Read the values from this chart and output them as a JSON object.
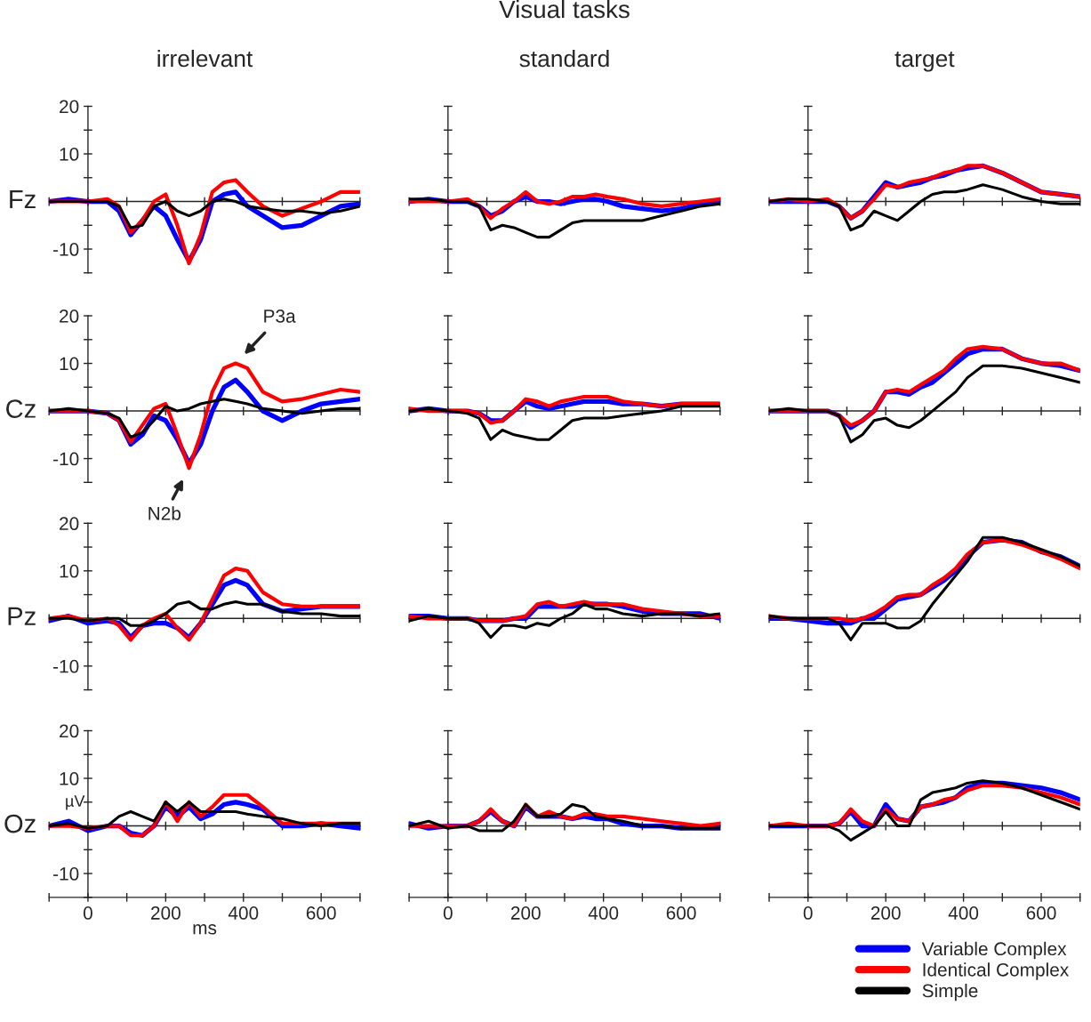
{
  "chart_data": [
    {
      "type": "line",
      "subtitle": "irrelevant",
      "ylabel": "Fz",
      "tick_labels": "y",
      "x": [
        -100,
        -50,
        0,
        50,
        80,
        110,
        140,
        170,
        200,
        230,
        260,
        290,
        320,
        350,
        380,
        410,
        450,
        500,
        550,
        600,
        650,
        700
      ],
      "xlim": [
        -100,
        700
      ],
      "ylim": [
        -15,
        20
      ],
      "xticks": [
        {
          "value": -100,
          "label": null
        },
        0,
        {
          "value": 100,
          "label": null
        },
        200,
        {
          "value": 300,
          "label": null
        },
        400,
        {
          "value": 500,
          "label": null
        },
        600,
        {
          "value": 700,
          "label": null
        }
      ],
      "yticks": [
        {
          "value": -15,
          "label": null
        },
        -10,
        {
          "value": -5,
          "label": null
        },
        {
          "value": 0,
          "label": null
        },
        {
          "value": 5,
          "label": null
        },
        10,
        {
          "value": 15,
          "label": null
        },
        20
      ],
      "series": [
        {
          "color": "#0000ff",
          "values": [
            0,
            0.5,
            0,
            0,
            -2,
            -7,
            -4,
            -1,
            -3,
            -8,
            -12.5,
            -8,
            0,
            1.5,
            2,
            -1,
            -3,
            -5.5,
            -5,
            -3,
            -1,
            -0.5
          ]
        },
        {
          "color": "#ff0000",
          "values": [
            0,
            0,
            0,
            0.5,
            -1,
            -6.5,
            -4,
            0,
            1.5,
            -5,
            -13,
            -7,
            2,
            4,
            4.5,
            2,
            -1,
            -3,
            -1.5,
            0,
            2,
            2
          ]
        },
        {
          "color": "#000000",
          "values": [
            0,
            0,
            0,
            0,
            -1,
            -5.5,
            -5,
            -1,
            0,
            -2,
            -3,
            -2,
            0,
            0.5,
            0,
            -1,
            -1.5,
            -2,
            -2,
            -2.5,
            -2,
            -1
          ]
        }
      ]
    },
    {
      "type": "line",
      "title": "Visual tasks",
      "subtitle": "standard",
      "tick_labels": false,
      "x": [
        -100,
        -50,
        0,
        50,
        80,
        110,
        140,
        170,
        200,
        230,
        260,
        290,
        320,
        350,
        380,
        410,
        450,
        500,
        550,
        600,
        650,
        700
      ],
      "xlim": [
        -100,
        700
      ],
      "ylim": [
        -15,
        20
      ],
      "xticks": [
        {
          "value": -100,
          "label": null
        },
        0,
        {
          "value": 100,
          "label": null
        },
        200,
        {
          "value": 300,
          "label": null
        },
        400,
        {
          "value": 500,
          "label": null
        },
        600,
        {
          "value": 700,
          "label": null
        }
      ],
      "yticks": [
        {
          "value": -15,
          "label": null
        },
        -10,
        {
          "value": -5,
          "label": null
        },
        {
          "value": 0,
          "label": null
        },
        {
          "value": 5,
          "label": null
        },
        10,
        {
          "value": 15,
          "label": null
        },
        20
      ],
      "series": [
        {
          "color": "#0000ff",
          "values": [
            0,
            0.5,
            0,
            0,
            -1,
            -3,
            -2,
            0,
            1,
            0,
            0,
            -0.5,
            0,
            0.5,
            0.5,
            0,
            -1,
            -1.5,
            -2,
            -1.5,
            -0.5,
            0
          ]
        },
        {
          "color": "#ff0000",
          "values": [
            0,
            0,
            0,
            0.5,
            -1,
            -3.5,
            -1.5,
            0,
            2,
            0,
            -0.5,
            0,
            1,
            1,
            1.5,
            1,
            0.5,
            -0.5,
            -1,
            -0.5,
            0,
            0.5
          ]
        },
        {
          "color": "#000000",
          "values": [
            0.5,
            0.5,
            0,
            0,
            -1,
            -6,
            -5,
            -5.5,
            -6.5,
            -7.5,
            -7.5,
            -6,
            -4.5,
            -4,
            -4,
            -4,
            -4,
            -4,
            -3,
            -2,
            -1,
            -0.5
          ]
        }
      ]
    },
    {
      "type": "line",
      "subtitle": "target",
      "tick_labels": false,
      "x": [
        -100,
        -50,
        0,
        50,
        80,
        110,
        140,
        170,
        200,
        230,
        260,
        290,
        320,
        350,
        380,
        410,
        450,
        500,
        550,
        600,
        650,
        700
      ],
      "xlim": [
        -100,
        700
      ],
      "ylim": [
        -15,
        20
      ],
      "xticks": [
        {
          "value": -100,
          "label": null
        },
        0,
        {
          "value": 100,
          "label": null
        },
        200,
        {
          "value": 300,
          "label": null
        },
        400,
        {
          "value": 500,
          "label": null
        },
        600,
        {
          "value": 700,
          "label": null
        }
      ],
      "yticks": [
        {
          "value": -15,
          "label": null
        },
        -10,
        {
          "value": -5,
          "label": null
        },
        {
          "value": 0,
          "label": null
        },
        {
          "value": 5,
          "label": null
        },
        10,
        {
          "value": 15,
          "label": null
        },
        20
      ],
      "series": [
        {
          "color": "#0000ff",
          "values": [
            0,
            0,
            0,
            0,
            -1,
            -3.5,
            -2,
            1,
            4,
            3,
            3.5,
            4,
            5,
            5.5,
            6.5,
            7,
            7.5,
            6,
            4,
            2,
            1.5,
            1
          ]
        },
        {
          "color": "#ff0000",
          "values": [
            0,
            0.5,
            0,
            0.5,
            -1,
            -3.5,
            -2,
            0.5,
            3.5,
            3,
            4,
            4.5,
            5,
            6,
            6.5,
            7.5,
            7.5,
            6,
            4,
            2,
            1.5,
            1
          ]
        },
        {
          "color": "#000000",
          "values": [
            0,
            0.5,
            0.5,
            0,
            -1,
            -6,
            -5,
            -2,
            -3,
            -4,
            -2,
            0,
            1.5,
            2,
            2,
            2.5,
            3.5,
            2.5,
            1,
            0,
            -0.5,
            -0.5
          ]
        }
      ]
    },
    {
      "type": "line",
      "ylabel": "Cz",
      "tick_labels": "y",
      "annotations": [
        {
          "text": "P3a",
          "x": 380,
          "y": 10
        },
        {
          "text": "N2b",
          "x": 260,
          "y": -12
        }
      ],
      "x": [
        -100,
        -50,
        0,
        50,
        80,
        110,
        140,
        170,
        200,
        230,
        260,
        290,
        320,
        350,
        380,
        410,
        450,
        500,
        550,
        600,
        650,
        700
      ],
      "xlim": [
        -100,
        700
      ],
      "ylim": [
        -15,
        20
      ],
      "xticks": [
        {
          "value": -100,
          "label": null
        },
        0,
        {
          "value": 100,
          "label": null
        },
        200,
        {
          "value": 300,
          "label": null
        },
        400,
        {
          "value": 500,
          "label": null
        },
        600,
        {
          "value": 700,
          "label": null
        }
      ],
      "yticks": [
        {
          "value": -15,
          "label": null
        },
        -10,
        {
          "value": -5,
          "label": null
        },
        {
          "value": 0,
          "label": null
        },
        {
          "value": 5,
          "label": null
        },
        10,
        {
          "value": 15,
          "label": null
        },
        20
      ],
      "series": [
        {
          "color": "#0000ff",
          "values": [
            0,
            0,
            0,
            -0.5,
            -2,
            -7,
            -5,
            -1,
            -2,
            -6,
            -11,
            -7,
            0,
            5,
            6.5,
            4,
            0,
            -2,
            0,
            1.5,
            2,
            2.5
          ]
        },
        {
          "color": "#ff0000",
          "values": [
            0,
            0,
            0,
            -0.5,
            -2,
            -6.5,
            -3,
            0.5,
            1.5,
            -5,
            -12,
            -5,
            4,
            9,
            10,
            9,
            4,
            2,
            2.5,
            3.5,
            4.5,
            4
          ]
        },
        {
          "color": "#000000",
          "values": [
            0,
            0.5,
            0,
            -0.5,
            -1.5,
            -5.5,
            -4.5,
            -2,
            1,
            0,
            0.5,
            1.5,
            2,
            2.5,
            2,
            1.5,
            0.5,
            0,
            -0.5,
            0,
            0.5,
            0.5
          ]
        }
      ]
    },
    {
      "type": "line",
      "tick_labels": false,
      "x": [
        -100,
        -50,
        0,
        50,
        80,
        110,
        140,
        170,
        200,
        230,
        260,
        290,
        320,
        350,
        380,
        410,
        450,
        500,
        550,
        600,
        650,
        700
      ],
      "xlim": [
        -100,
        700
      ],
      "ylim": [
        -15,
        20
      ],
      "xticks": [
        {
          "value": -100,
          "label": null
        },
        0,
        {
          "value": 100,
          "label": null
        },
        200,
        {
          "value": 300,
          "label": null
        },
        400,
        {
          "value": 500,
          "label": null
        },
        600,
        {
          "value": 700,
          "label": null
        }
      ],
      "yticks": [
        {
          "value": -15,
          "label": null
        },
        -10,
        {
          "value": -5,
          "label": null
        },
        {
          "value": 0,
          "label": null
        },
        {
          "value": 5,
          "label": null
        },
        10,
        {
          "value": 15,
          "label": null
        },
        20
      ],
      "series": [
        {
          "color": "#0000ff",
          "values": [
            0,
            0.5,
            0,
            0,
            -0.5,
            -2,
            -2,
            0,
            2,
            1,
            0.5,
            1,
            1.5,
            2,
            2,
            2,
            1.5,
            1.5,
            1,
            1.5,
            1.5,
            1.5
          ]
        },
        {
          "color": "#ff0000",
          "values": [
            0.5,
            0,
            0,
            0,
            -0.5,
            -2.5,
            -2,
            0,
            2.5,
            2,
            1,
            2,
            2.5,
            3,
            3,
            3,
            2,
            1.5,
            1,
            1.5,
            1.5,
            1.5
          ]
        },
        {
          "color": "#000000",
          "values": [
            0,
            0.5,
            0,
            -0.5,
            -1.5,
            -6,
            -4,
            -5,
            -5.5,
            -6,
            -6,
            -4,
            -2,
            -1.5,
            -1.5,
            -1.5,
            -1,
            -0.5,
            0,
            1,
            1,
            1
          ]
        }
      ]
    },
    {
      "type": "line",
      "tick_labels": false,
      "x": [
        -100,
        -50,
        0,
        50,
        80,
        110,
        140,
        170,
        200,
        230,
        260,
        290,
        320,
        350,
        380,
        410,
        450,
        500,
        550,
        600,
        650,
        700
      ],
      "xlim": [
        -100,
        700
      ],
      "ylim": [
        -15,
        20
      ],
      "xticks": [
        {
          "value": -100,
          "label": null
        },
        0,
        {
          "value": 100,
          "label": null
        },
        200,
        {
          "value": 300,
          "label": null
        },
        400,
        {
          "value": 500,
          "label": null
        },
        600,
        {
          "value": 700,
          "label": null
        }
      ],
      "yticks": [
        {
          "value": -15,
          "label": null
        },
        -10,
        {
          "value": -5,
          "label": null
        },
        {
          "value": 0,
          "label": null
        },
        {
          "value": 5,
          "label": null
        },
        10,
        {
          "value": 15,
          "label": null
        },
        20
      ],
      "series": [
        {
          "color": "#0000ff",
          "values": [
            0,
            0,
            0,
            0,
            -1,
            -3.5,
            -2,
            0,
            4,
            4,
            3.5,
            5,
            6,
            8,
            10,
            12,
            13,
            13,
            11,
            10,
            9.5,
            8.5
          ]
        },
        {
          "color": "#ff0000",
          "values": [
            0,
            0,
            0,
            0,
            -1,
            -3,
            -2,
            0,
            4,
            4.5,
            4,
            5.5,
            7,
            8.5,
            11,
            13,
            13.5,
            13,
            11,
            10,
            10,
            8.5
          ]
        },
        {
          "color": "#000000",
          "values": [
            0,
            0.5,
            0,
            0,
            -1,
            -6.5,
            -5,
            -2,
            -1.5,
            -3,
            -3.5,
            -2,
            0,
            2,
            4,
            7,
            9.5,
            9.5,
            9,
            8,
            7,
            6
          ]
        }
      ]
    },
    {
      "type": "line",
      "ylabel": "Pz",
      "tick_labels": "y",
      "x": [
        -100,
        -50,
        0,
        50,
        80,
        110,
        140,
        170,
        200,
        230,
        260,
        290,
        320,
        350,
        380,
        410,
        450,
        500,
        550,
        600,
        650,
        700
      ],
      "xlim": [
        -100,
        700
      ],
      "ylim": [
        -15,
        20
      ],
      "xticks": [
        {
          "value": -100,
          "label": null
        },
        0,
        {
          "value": 100,
          "label": null
        },
        200,
        {
          "value": 300,
          "label": null
        },
        400,
        {
          "value": 500,
          "label": null
        },
        600,
        {
          "value": 700,
          "label": null
        }
      ],
      "yticks": [
        {
          "value": -15,
          "label": null
        },
        -10,
        {
          "value": -5,
          "label": null
        },
        {
          "value": 0,
          "label": null
        },
        {
          "value": 5,
          "label": null
        },
        10,
        {
          "value": 15,
          "label": null
        },
        20
      ],
      "series": [
        {
          "color": "#0000ff",
          "values": [
            -0.5,
            0.5,
            -1,
            -0.5,
            -1,
            -4,
            -1.5,
            -1,
            -1,
            -2,
            -4,
            -1,
            3,
            7,
            8,
            7,
            3,
            1.5,
            2,
            2.5,
            2.5,
            2.5
          ]
        },
        {
          "color": "#ff0000",
          "values": [
            0,
            0.5,
            -0.5,
            0,
            -1.5,
            -4.5,
            -1.5,
            0,
            1,
            -2,
            -4.5,
            -1,
            4,
            9,
            10.5,
            10,
            5.5,
            3,
            2.5,
            2.5,
            2.5,
            2.5
          ]
        },
        {
          "color": "#000000",
          "values": [
            0,
            0,
            -0.5,
            0,
            0,
            -1.5,
            -1.5,
            -0.5,
            1,
            3,
            3.5,
            2,
            2,
            3,
            3.5,
            3,
            3,
            1.5,
            1,
            1,
            0.5,
            0.5
          ]
        }
      ]
    },
    {
      "type": "line",
      "tick_labels": false,
      "x": [
        -100,
        -50,
        0,
        50,
        80,
        110,
        140,
        170,
        200,
        230,
        260,
        290,
        320,
        350,
        380,
        410,
        450,
        500,
        550,
        600,
        650,
        700
      ],
      "xlim": [
        -100,
        700
      ],
      "ylim": [
        -15,
        20
      ],
      "xticks": [
        {
          "value": -100,
          "label": null
        },
        0,
        {
          "value": 100,
          "label": null
        },
        200,
        {
          "value": 300,
          "label": null
        },
        400,
        {
          "value": 500,
          "label": null
        },
        600,
        {
          "value": 700,
          "label": null
        }
      ],
      "yticks": [
        {
          "value": -15,
          "label": null
        },
        -10,
        {
          "value": -5,
          "label": null
        },
        {
          "value": 0,
          "label": null
        },
        {
          "value": 5,
          "label": null
        },
        10,
        {
          "value": 15,
          "label": null
        },
        20
      ],
      "series": [
        {
          "color": "#0000ff",
          "values": [
            0.5,
            0.5,
            0,
            0,
            -0.5,
            -0.5,
            -0.5,
            0,
            0,
            2.5,
            2.5,
            2.5,
            2.5,
            3,
            3,
            3,
            2.5,
            1.5,
            1,
            1,
            1,
            0
          ]
        },
        {
          "color": "#ff0000",
          "values": [
            0.5,
            0,
            0,
            0,
            -0.5,
            -0.5,
            -0.5,
            0,
            0.5,
            3,
            3.5,
            2.5,
            3,
            3.5,
            3,
            3,
            3,
            2,
            1.5,
            1,
            0.5,
            0.5
          ]
        },
        {
          "color": "#000000",
          "values": [
            -0.5,
            0.5,
            0,
            0,
            -1,
            -4,
            -1.5,
            -1.5,
            -2,
            -1,
            -1.5,
            0,
            1,
            3,
            2,
            2,
            1,
            0.5,
            1,
            1,
            0.5,
            1
          ]
        }
      ]
    },
    {
      "type": "line",
      "tick_labels": false,
      "x": [
        -100,
        -50,
        0,
        50,
        80,
        110,
        140,
        170,
        200,
        230,
        260,
        290,
        320,
        350,
        380,
        410,
        450,
        500,
        550,
        600,
        650,
        700
      ],
      "xlim": [
        -100,
        700
      ],
      "ylim": [
        -15,
        20
      ],
      "xticks": [
        {
          "value": -100,
          "label": null
        },
        0,
        {
          "value": 100,
          "label": null
        },
        200,
        {
          "value": 300,
          "label": null
        },
        400,
        {
          "value": 500,
          "label": null
        },
        600,
        {
          "value": 700,
          "label": null
        }
      ],
      "yticks": [
        {
          "value": -15,
          "label": null
        },
        -10,
        {
          "value": -5,
          "label": null
        },
        {
          "value": 0,
          "label": null
        },
        {
          "value": 5,
          "label": null
        },
        10,
        {
          "value": 15,
          "label": null
        },
        20
      ],
      "series": [
        {
          "color": "#0000ff",
          "values": [
            0,
            0,
            -0.5,
            -1,
            -1,
            -1,
            0,
            0,
            2,
            4,
            4.5,
            5,
            6.5,
            8,
            10,
            13,
            16,
            16.5,
            16,
            14,
            13,
            11
          ]
        },
        {
          "color": "#ff0000",
          "values": [
            0.5,
            0,
            0,
            0,
            0,
            -0.5,
            0,
            1,
            2.5,
            4.5,
            5,
            5,
            7,
            8.5,
            10.5,
            13.5,
            16,
            16.5,
            15.5,
            14,
            12.5,
            10.5
          ]
        },
        {
          "color": "#000000",
          "values": [
            0.5,
            0,
            0,
            0,
            -1,
            -4.5,
            -1,
            -1,
            -1,
            -2,
            -2,
            -0.5,
            3,
            6,
            9,
            12,
            17,
            17,
            16,
            14.5,
            13,
            11
          ]
        }
      ]
    },
    {
      "type": "line",
      "ylabel": "Oz",
      "xlabel": "ms",
      "annotations": [
        "µV"
      ],
      "x": [
        -100,
        -50,
        0,
        50,
        80,
        110,
        140,
        170,
        200,
        230,
        260,
        290,
        320,
        350,
        380,
        410,
        450,
        500,
        550,
        600,
        650,
        700
      ],
      "xlim": [
        -100,
        700
      ],
      "ylim": [
        -15,
        20
      ],
      "xticks": [
        {
          "value": -100,
          "label": null
        },
        0,
        {
          "value": 100,
          "label": null
        },
        200,
        {
          "value": 300,
          "label": null
        },
        400,
        {
          "value": 500,
          "label": null
        },
        600,
        {
          "value": 700,
          "label": null
        }
      ],
      "yticks": [
        {
          "value": -15,
          "label": null
        },
        -10,
        {
          "value": -5,
          "label": null
        },
        {
          "value": 0,
          "label": null
        },
        {
          "value": 5,
          "label": null
        },
        10,
        {
          "value": 15,
          "label": null
        },
        20
      ],
      "series": [
        {
          "color": "#0000ff",
          "values": [
            0,
            1,
            -1,
            0,
            0,
            -1.5,
            -2,
            0,
            4,
            2,
            4,
            1.5,
            2.5,
            4.5,
            5,
            4.5,
            3.5,
            0,
            0,
            0.5,
            0,
            -0.5
          ]
        },
        {
          "color": "#ff0000",
          "values": [
            0,
            0,
            -0.5,
            0,
            0,
            -2,
            -2,
            0,
            5,
            1,
            5,
            2,
            4,
            6.5,
            6.5,
            6.5,
            4,
            0.5,
            0.5,
            0.5,
            0.5,
            0.5
          ]
        },
        {
          "color": "#000000",
          "values": [
            0,
            0.5,
            -0.5,
            0,
            2,
            3,
            2,
            1,
            5,
            3,
            5,
            3,
            3,
            3,
            3,
            2.5,
            2,
            1.5,
            0.5,
            0,
            0.5,
            0.5
          ]
        }
      ]
    },
    {
      "type": "line",
      "tick_labels": "x",
      "x": [
        -100,
        -50,
        0,
        50,
        80,
        110,
        140,
        170,
        200,
        230,
        260,
        290,
        320,
        350,
        380,
        410,
        450,
        500,
        550,
        600,
        650,
        700
      ],
      "xlim": [
        -100,
        700
      ],
      "ylim": [
        -15,
        20
      ],
      "xticks": [
        {
          "value": -100,
          "label": null
        },
        0,
        {
          "value": 100,
          "label": null
        },
        200,
        {
          "value": 300,
          "label": null
        },
        400,
        {
          "value": 500,
          "label": null
        },
        600,
        {
          "value": 700,
          "label": null
        }
      ],
      "yticks": [
        {
          "value": -15,
          "label": null
        },
        -10,
        {
          "value": -5,
          "label": null
        },
        {
          "value": 0,
          "label": null
        },
        {
          "value": 5,
          "label": null
        },
        10,
        {
          "value": 15,
          "label": null
        },
        20
      ],
      "series": [
        {
          "color": "#0000ff",
          "values": [
            0.5,
            -0.5,
            0,
            0,
            1,
            3,
            1,
            0,
            4,
            2,
            2,
            2,
            1.5,
            2,
            1.5,
            1.5,
            0.5,
            0,
            0,
            -0.5,
            -0.5,
            -0.5
          ]
        },
        {
          "color": "#ff0000",
          "values": [
            0,
            0,
            0,
            0,
            1,
            3.5,
            1,
            0,
            4.5,
            2,
            3,
            2,
            1.5,
            2.5,
            2.5,
            2,
            2,
            1.5,
            1,
            0.5,
            0,
            0.5
          ]
        },
        {
          "color": "#000000",
          "values": [
            0,
            1,
            -0.5,
            0,
            -1,
            -1,
            -1,
            1,
            4.5,
            2,
            2,
            2.5,
            4.5,
            4,
            2,
            1.5,
            1,
            0,
            0,
            -0.5,
            -0.5,
            -0.5
          ]
        }
      ]
    },
    {
      "type": "line",
      "tick_labels": "x",
      "legend": "bottom right",
      "x": [
        -100,
        -50,
        0,
        50,
        80,
        110,
        140,
        170,
        200,
        230,
        260,
        290,
        320,
        350,
        380,
        410,
        450,
        500,
        550,
        600,
        650,
        700
      ],
      "xlim": [
        -100,
        700
      ],
      "ylim": [
        -15,
        20
      ],
      "xticks": [
        {
          "value": -100,
          "label": null
        },
        0,
        {
          "value": 100,
          "label": null
        },
        200,
        {
          "value": 300,
          "label": null
        },
        400,
        {
          "value": 500,
          "label": null
        },
        600,
        {
          "value": 700,
          "label": null
        }
      ],
      "yticks": [
        {
          "value": -15,
          "label": null
        },
        -10,
        {
          "value": -5,
          "label": null
        },
        {
          "value": 0,
          "label": null
        },
        {
          "value": 5,
          "label": null
        },
        10,
        {
          "value": 15,
          "label": null
        },
        20
      ],
      "series": [
        {
          "name": "Variable Complex",
          "color": "#0000ff",
          "values": [
            0,
            0,
            0,
            0,
            0.5,
            3,
            0,
            0,
            4.5,
            1.5,
            1,
            4,
            4.5,
            5,
            6,
            8,
            9,
            9,
            8.5,
            8,
            7,
            5.5
          ]
        },
        {
          "name": "Identical Complex",
          "color": "#ff0000",
          "values": [
            0,
            0.5,
            0,
            0,
            0.5,
            3.5,
            1,
            0,
            3.5,
            1.5,
            1,
            4,
            4.5,
            5.5,
            6,
            7.5,
            8.5,
            8.5,
            8,
            7,
            6,
            4.5
          ]
        },
        {
          "name": "Simple",
          "color": "#000000",
          "values": [
            0,
            0,
            0,
            0,
            -1,
            -3,
            -1.5,
            0,
            3,
            0,
            0,
            5.5,
            7,
            7.5,
            8,
            9,
            9.5,
            9,
            8,
            6.5,
            5,
            3.5
          ]
        }
      ]
    }
  ]
}
